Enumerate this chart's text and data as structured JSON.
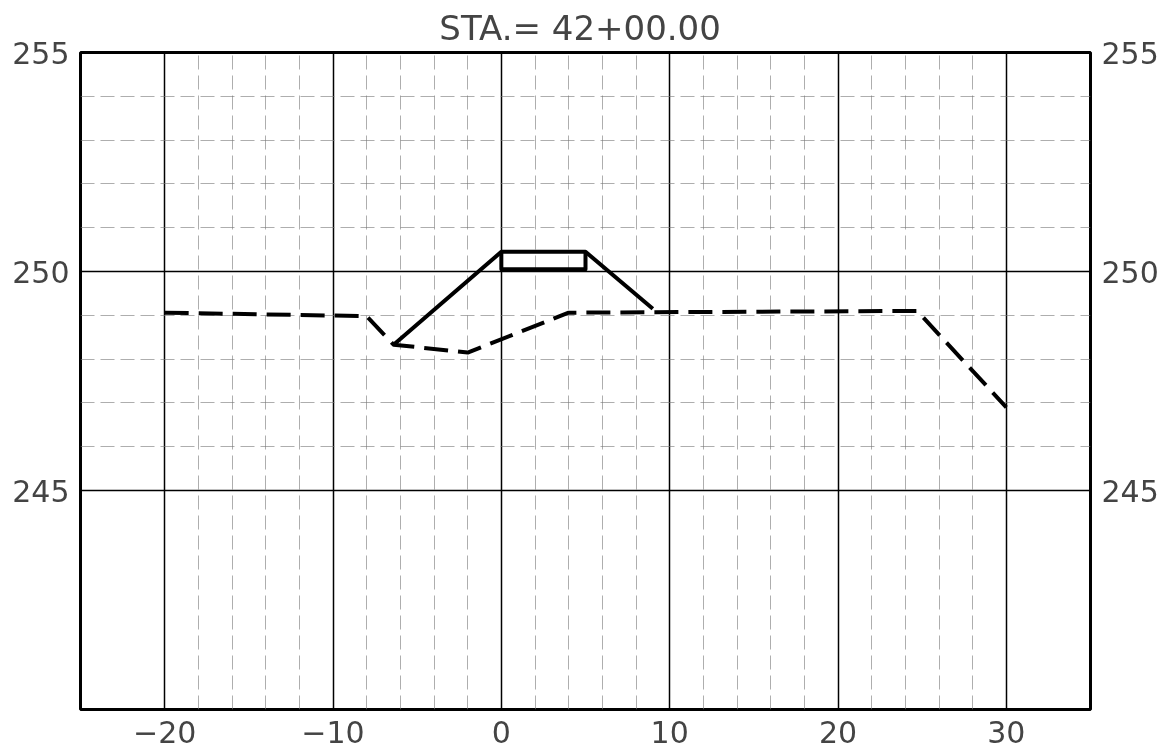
{
  "chart_data": {
    "type": "line",
    "title": "STA.=  42+00.00",
    "series": [
      {
        "color": "#000000",
        "line_style": "dashed",
        "x": [
          -20,
          -8,
          -6.4,
          -2,
          4,
          24.7,
          30
        ],
        "values": [
          249.06,
          248.98,
          248.33,
          248.15,
          249.06,
          249.1,
          246.9
        ]
      },
      {
        "color": "#000000",
        "line_style": "solid",
        "x": [
          -6.4,
          0,
          5,
          9
        ],
        "values": [
          248.33,
          250.45,
          250.45,
          249.15
        ]
      },
      {
        "color": "#000000",
        "line_style": "solid",
        "x": [
          0,
          0,
          5,
          5
        ],
        "values": [
          250.45,
          250.05,
          250.05,
          250.45
        ]
      }
    ],
    "xlim": [
      -25,
      35
    ],
    "xticks": [
      -20,
      -10,
      0,
      10,
      20,
      30
    ],
    "ylim": [
      240,
      255
    ],
    "yticks": [
      245,
      250,
      255
    ],
    "y2lim": [
      240,
      255
    ],
    "y2ticks": [
      245,
      250,
      255
    ],
    "grid": true,
    "marker": "none"
  }
}
